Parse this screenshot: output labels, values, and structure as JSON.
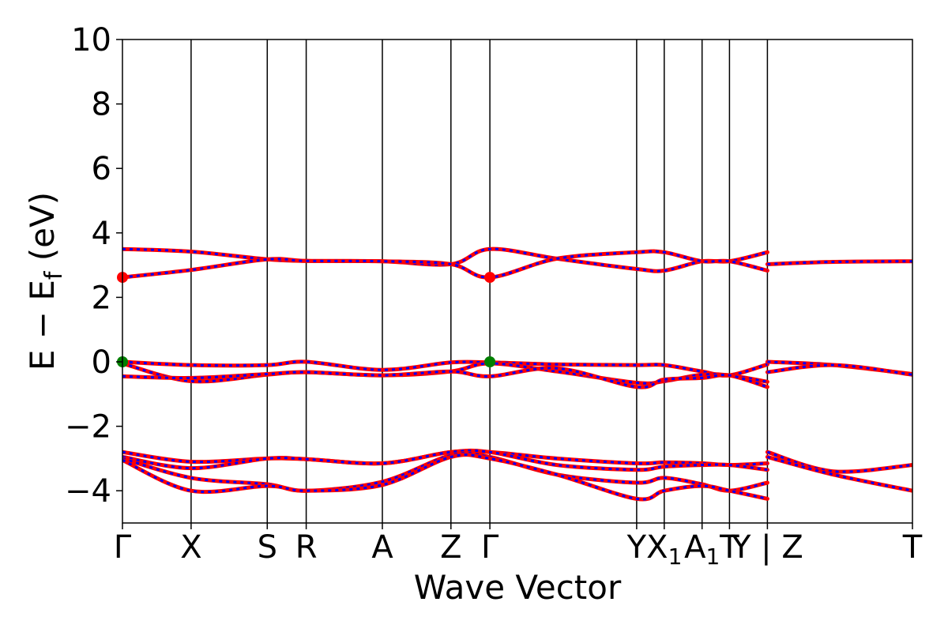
{
  "chart_data": {
    "type": "line",
    "title": "",
    "xlabel": "Wave Vector",
    "ylabel_parts": {
      "main": "E − E",
      "sub": "f",
      "unit": " (eV)"
    },
    "ylim": [
      -5,
      10
    ],
    "yticks": [
      {
        "value": -4,
        "label": "−4"
      },
      {
        "value": -2,
        "label": "−2"
      },
      {
        "value": 0,
        "label": "0"
      },
      {
        "value": 2,
        "label": "2"
      },
      {
        "value": 4,
        "label": "4"
      },
      {
        "value": 6,
        "label": "6"
      },
      {
        "value": 8,
        "label": "8"
      },
      {
        "value": 10,
        "label": "10"
      }
    ],
    "xlim": [
      0,
      1
    ],
    "kpoints": [
      {
        "x": 0.0,
        "label": "Γ"
      },
      {
        "x": 0.0869,
        "label": "X"
      },
      {
        "x": 0.1833,
        "label": "S"
      },
      {
        "x": 0.2326,
        "label": "R"
      },
      {
        "x": 0.329,
        "label": "A"
      },
      {
        "x": 0.4158,
        "label": "Z"
      },
      {
        "x": 0.4651,
        "label": "Γ"
      },
      {
        "x": 0.6509,
        "label": "Y"
      },
      {
        "x": 0.6858,
        "label": "X",
        "sub": "1"
      },
      {
        "x": 0.7337,
        "label": "A",
        "sub": "1"
      },
      {
        "x": 0.7684,
        "label": "T"
      },
      {
        "x": 0.8164,
        "label": "Y | Z"
      },
      {
        "x": 1.0,
        "label": "T"
      }
    ],
    "colors": {
      "up": "#ff0000",
      "down": "#0000ff",
      "cbm": "#ff0000",
      "vbm": "#008000",
      "frame": "#000000"
    },
    "markers": [
      {
        "type": "cbm",
        "x": 0.0,
        "y": 2.62
      },
      {
        "type": "cbm",
        "x": 0.4651,
        "y": 2.62
      },
      {
        "type": "vbm",
        "x": 0.0,
        "y": 0.0
      },
      {
        "type": "vbm",
        "x": 0.4651,
        "y": 0.0
      }
    ],
    "series": [
      {
        "points": [
          [
            0,
            3.5
          ],
          [
            0.0869,
            3.42
          ],
          [
            0.1833,
            3.18
          ],
          [
            0.2326,
            3.13
          ],
          [
            0.329,
            3.12
          ],
          [
            0.4158,
            3.03
          ],
          [
            0.4651,
            3.5
          ],
          [
            0.55,
            3.2
          ],
          [
            0.6509,
            2.88
          ],
          [
            0.6858,
            2.83
          ],
          [
            0.7337,
            3.12
          ],
          [
            0.7684,
            3.12
          ],
          [
            0.8164,
            3.4
          ]
        ]
      },
      {
        "points": [
          [
            0,
            2.62
          ],
          [
            0.0869,
            2.85
          ],
          [
            0.1833,
            3.18
          ],
          [
            0.2326,
            3.13
          ],
          [
            0.329,
            3.12
          ],
          [
            0.4158,
            3.03
          ],
          [
            0.4651,
            2.62
          ],
          [
            0.55,
            3.2
          ],
          [
            0.6509,
            3.4
          ],
          [
            0.6858,
            3.4
          ],
          [
            0.7337,
            3.12
          ],
          [
            0.7684,
            3.12
          ],
          [
            0.8164,
            2.83
          ]
        ]
      },
      {
        "points": [
          [
            0.8164,
            3.03
          ],
          [
            0.9,
            3.1
          ],
          [
            1.0,
            3.12
          ]
        ]
      },
      {
        "points": [
          [
            0,
            0.0
          ],
          [
            0.0869,
            -0.1
          ],
          [
            0.1833,
            -0.1
          ],
          [
            0.2326,
            0.0
          ],
          [
            0.329,
            -0.25
          ],
          [
            0.4158,
            -0.02
          ],
          [
            0.4651,
            -0.02
          ],
          [
            0.55,
            -0.08
          ],
          [
            0.6509,
            -0.1
          ],
          [
            0.6858,
            -0.1
          ],
          [
            0.7337,
            -0.3
          ],
          [
            0.7684,
            -0.42
          ],
          [
            0.8164,
            -0.08
          ]
        ]
      },
      {
        "points": [
          [
            0,
            -0.05
          ],
          [
            0.0869,
            -0.6
          ],
          [
            0.1833,
            -0.4
          ],
          [
            0.2326,
            -0.32
          ],
          [
            0.329,
            -0.42
          ],
          [
            0.4158,
            -0.3
          ],
          [
            0.4651,
            -0.05
          ],
          [
            0.55,
            -0.3
          ],
          [
            0.6509,
            -0.65
          ],
          [
            0.6858,
            -0.6
          ],
          [
            0.7337,
            -0.4
          ],
          [
            0.7684,
            -0.42
          ],
          [
            0.8164,
            -0.62
          ]
        ]
      },
      {
        "points": [
          [
            0,
            -0.45
          ],
          [
            0.0869,
            -0.5
          ],
          [
            0.1833,
            -0.38
          ],
          [
            0.2326,
            -0.32
          ],
          [
            0.329,
            -0.42
          ],
          [
            0.4158,
            -0.3
          ],
          [
            0.4651,
            -0.45
          ],
          [
            0.55,
            -0.2
          ],
          [
            0.6509,
            -0.78
          ],
          [
            0.6858,
            -0.55
          ],
          [
            0.7337,
            -0.5
          ],
          [
            0.7684,
            -0.42
          ],
          [
            0.8164,
            -0.78
          ]
        ]
      },
      {
        "points": [
          [
            0.8164,
            0.0
          ],
          [
            0.9,
            -0.1
          ],
          [
            1.0,
            -0.38
          ]
        ]
      },
      {
        "points": [
          [
            0.8164,
            -0.32
          ],
          [
            0.9,
            -0.1
          ],
          [
            1.0,
            -0.4
          ]
        ]
      },
      {
        "points": [
          [
            0,
            -2.8
          ],
          [
            0.0869,
            -3.1
          ],
          [
            0.1833,
            -3.0
          ],
          [
            0.2326,
            -3.02
          ],
          [
            0.329,
            -3.15
          ],
          [
            0.4158,
            -2.8
          ],
          [
            0.4651,
            -2.8
          ],
          [
            0.55,
            -3.0
          ],
          [
            0.6509,
            -3.15
          ],
          [
            0.6858,
            -3.12
          ],
          [
            0.7337,
            -3.15
          ],
          [
            0.7684,
            -3.2
          ],
          [
            0.8164,
            -3.15
          ]
        ]
      },
      {
        "points": [
          [
            0,
            -2.95
          ],
          [
            0.0869,
            -3.3
          ],
          [
            0.1833,
            -3.0
          ],
          [
            0.2326,
            -3.02
          ],
          [
            0.329,
            -3.15
          ],
          [
            0.4158,
            -2.8
          ],
          [
            0.4651,
            -2.8
          ],
          [
            0.55,
            -3.2
          ],
          [
            0.6509,
            -3.35
          ],
          [
            0.6858,
            -3.25
          ],
          [
            0.7337,
            -3.2
          ],
          [
            0.7684,
            -3.2
          ],
          [
            0.8164,
            -3.35
          ]
        ]
      },
      {
        "points": [
          [
            0,
            -3.0
          ],
          [
            0.0869,
            -3.6
          ],
          [
            0.1833,
            -3.8
          ],
          [
            0.2326,
            -4.0
          ],
          [
            0.329,
            -3.72
          ],
          [
            0.4158,
            -2.9
          ],
          [
            0.4651,
            -2.95
          ],
          [
            0.55,
            -3.5
          ],
          [
            0.6509,
            -3.75
          ],
          [
            0.6858,
            -3.6
          ],
          [
            0.7337,
            -3.8
          ],
          [
            0.7684,
            -4.0
          ],
          [
            0.8164,
            -3.75
          ]
        ]
      },
      {
        "points": [
          [
            0,
            -3.05
          ],
          [
            0.0869,
            -4.0
          ],
          [
            0.1833,
            -3.85
          ],
          [
            0.2326,
            -4.0
          ],
          [
            0.329,
            -3.82
          ],
          [
            0.4158,
            -2.95
          ],
          [
            0.4651,
            -3.0
          ],
          [
            0.55,
            -3.5
          ],
          [
            0.6509,
            -4.25
          ],
          [
            0.6858,
            -4.0
          ],
          [
            0.7337,
            -3.85
          ],
          [
            0.7684,
            -4.0
          ],
          [
            0.8164,
            -4.25
          ]
        ]
      },
      {
        "points": [
          [
            0.8164,
            -2.8
          ],
          [
            0.9,
            -3.4
          ],
          [
            1.0,
            -3.2
          ]
        ]
      },
      {
        "points": [
          [
            0.8164,
            -2.95
          ],
          [
            0.9,
            -3.5
          ],
          [
            1.0,
            -4.0
          ]
        ]
      }
    ]
  }
}
